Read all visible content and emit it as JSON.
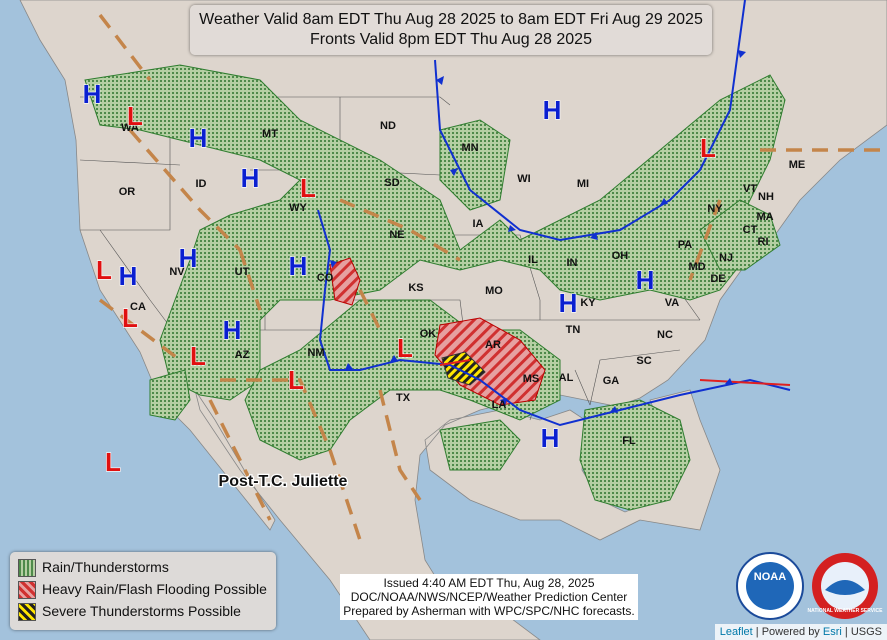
{
  "header": {
    "lines": [
      "Weather Valid 8am EDT Thu Aug 28 2025 to 8am EDT Fri Aug 29 2025",
      "Fronts Valid 8pm EDT Thu Aug 28 2025"
    ]
  },
  "states": [
    "WA",
    "MT",
    "ND",
    "MN",
    "WI",
    "MI",
    "OR",
    "ID",
    "SD",
    "WY",
    "IA",
    "NE",
    "NV",
    "UT",
    "CO",
    "IL",
    "IN",
    "OH",
    "PA",
    "NY",
    "VT",
    "NH",
    "ME",
    "MA",
    "CT",
    "RI",
    "NJ",
    "MD",
    "DE",
    "VA",
    "KY",
    "CA",
    "AZ",
    "NM",
    "KS",
    "MO",
    "TN",
    "NC",
    "SC",
    "OK",
    "AR",
    "MS",
    "AL",
    "GA",
    "TX",
    "LA",
    "FL"
  ],
  "pressure_centers": [
    "H",
    "H",
    "H",
    "H",
    "H",
    "H",
    "H",
    "H",
    "H",
    "H",
    "H",
    "L",
    "L",
    "L",
    "L",
    "L",
    "L",
    "L",
    "L",
    "L"
  ],
  "storm_label": "Post-T.C. Juliette",
  "legend": {
    "items": [
      "Rain/Thunderstorms",
      "Heavy Rain/Flash Flooding Possible",
      "Severe Thunderstorms Possible"
    ]
  },
  "issued": {
    "lines": [
      "Issued  4:40 AM EDT  Thu, Aug 28, 2025",
      "DOC/NOAA/NWS/NCEP/Weather Prediction Center",
      "Prepared by Asherman with WPC/SPC/NHC forecasts."
    ]
  },
  "logos": {
    "noaa": "NOAA",
    "nws": "NATIONAL WEATHER SERVICE"
  },
  "attribution": {
    "parts": [
      "Leaflet",
      "Powered by",
      "Esri",
      "USGS"
    ]
  }
}
